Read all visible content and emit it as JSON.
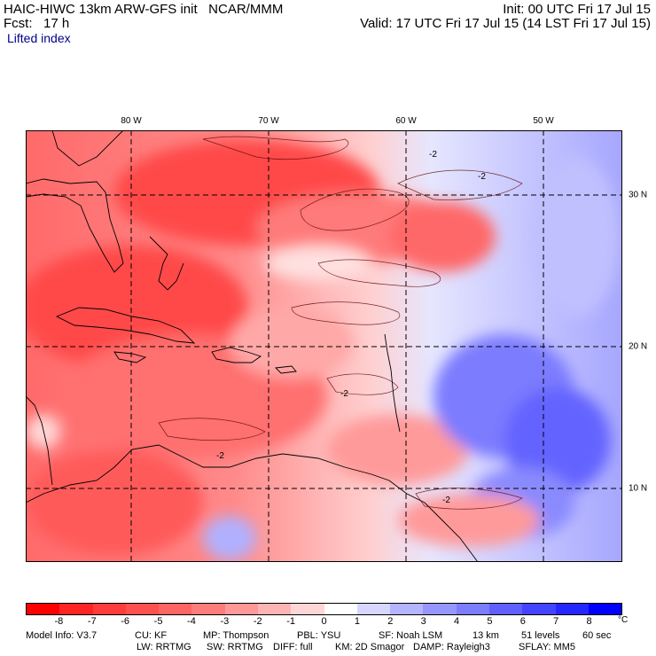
{
  "header": {
    "model_title": "HAIC-HIWC 13km ARW-GFS init",
    "institution": "NCAR/MMM",
    "init_time": "Init: 00 UTC Fri 17 Jul 15",
    "forecast_label": "Fcst:",
    "forecast_hours": "17 h",
    "valid_time": "Valid: 17 UTC Fri 17 Jul 15 (14 LST Fri 17 Jul 15)",
    "field_name": "Lifted index"
  },
  "map": {
    "lon_labels": [
      "80 W",
      "70 W",
      "60 W",
      "50 W"
    ],
    "lat_labels": [
      "30 N",
      "20 N",
      "10 N"
    ],
    "contour_label": "-2"
  },
  "colorbar": {
    "tick_labels": [
      "-8",
      "-7",
      "-6",
      "-5",
      "-4",
      "-3",
      "-2",
      "-1",
      "0",
      "1",
      "2",
      "3",
      "4",
      "5",
      "6",
      "7",
      "8"
    ],
    "unit": "°C",
    "colors": [
      "#ff0000",
      "#ff2424",
      "#ff3c3c",
      "#ff5050",
      "#ff6464",
      "#ff7c7c",
      "#ff9898",
      "#ffb4b4",
      "#ffd6d6",
      "#ffffff",
      "#d6d6ff",
      "#b4b4ff",
      "#9696ff",
      "#7c7cff",
      "#6060ff",
      "#4444ff",
      "#2626ff",
      "#0000ff"
    ]
  },
  "model_info": {
    "line1": [
      {
        "text": "Model Info: V3.7"
      },
      {
        "text": "CU: KF"
      },
      {
        "text": "MP: Thompson"
      },
      {
        "text": "PBL: YSU"
      },
      {
        "text": "SF: Noah LSM"
      },
      {
        "text": "13 km"
      },
      {
        "text": "51 levels"
      },
      {
        "text": "60 sec"
      }
    ],
    "line2": [
      {
        "text": "LW: RRTMG"
      },
      {
        "text": "SW: RRTMG"
      },
      {
        "text": "DIFF: full"
      },
      {
        "text": "KM: 2D Smagor"
      },
      {
        "text": "DAMP: Rayleigh3"
      },
      {
        "text": "SFLAY: MM5"
      }
    ]
  }
}
